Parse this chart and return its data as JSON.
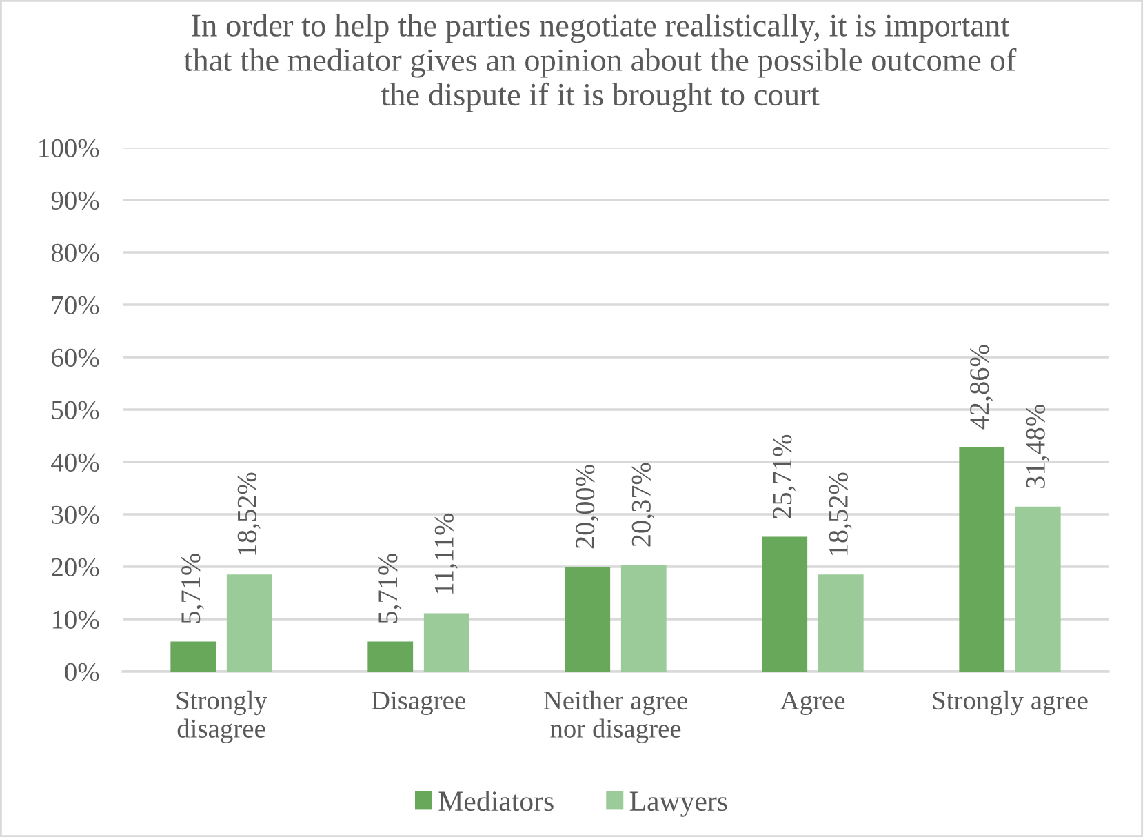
{
  "chart_data": {
    "type": "bar",
    "title": "In order to help the parties negotiate realistically, it is important that the mediator gives an opinion about the possible outcome of the dispute if it is brought to court",
    "categories": [
      "Strongly disagree",
      "Disagree",
      "Neither agree nor disagree",
      "Agree",
      "Strongly agree"
    ],
    "series": [
      {
        "name": "Mediators",
        "color": "#68a85a",
        "values": [
          5.71,
          5.71,
          20.0,
          25.71,
          42.86
        ],
        "value_labels": [
          "5,71%",
          "5,71%",
          "20,00%",
          "25,71%",
          "42,86%"
        ]
      },
      {
        "name": "Lawyers",
        "color": "#9bcb98",
        "values": [
          18.52,
          11.11,
          20.37,
          18.52,
          31.48
        ],
        "value_labels": [
          "18,52%",
          "11,11%",
          "20,37%",
          "18,52%",
          "31,48%"
        ]
      }
    ],
    "ylim": [
      0,
      100
    ],
    "yticks": [
      {
        "value": 0,
        "label": "0%"
      },
      {
        "value": 10,
        "label": "10%"
      },
      {
        "value": 20,
        "label": "20%"
      },
      {
        "value": 30,
        "label": "30%"
      },
      {
        "value": 40,
        "label": "40%"
      },
      {
        "value": 50,
        "label": "50%"
      },
      {
        "value": 60,
        "label": "60%"
      },
      {
        "value": 70,
        "label": "70%"
      },
      {
        "value": 80,
        "label": "80%"
      },
      {
        "value": 90,
        "label": "90%"
      },
      {
        "value": 100,
        "label": "100%"
      }
    ],
    "grid": "y",
    "legend": "bottom"
  }
}
